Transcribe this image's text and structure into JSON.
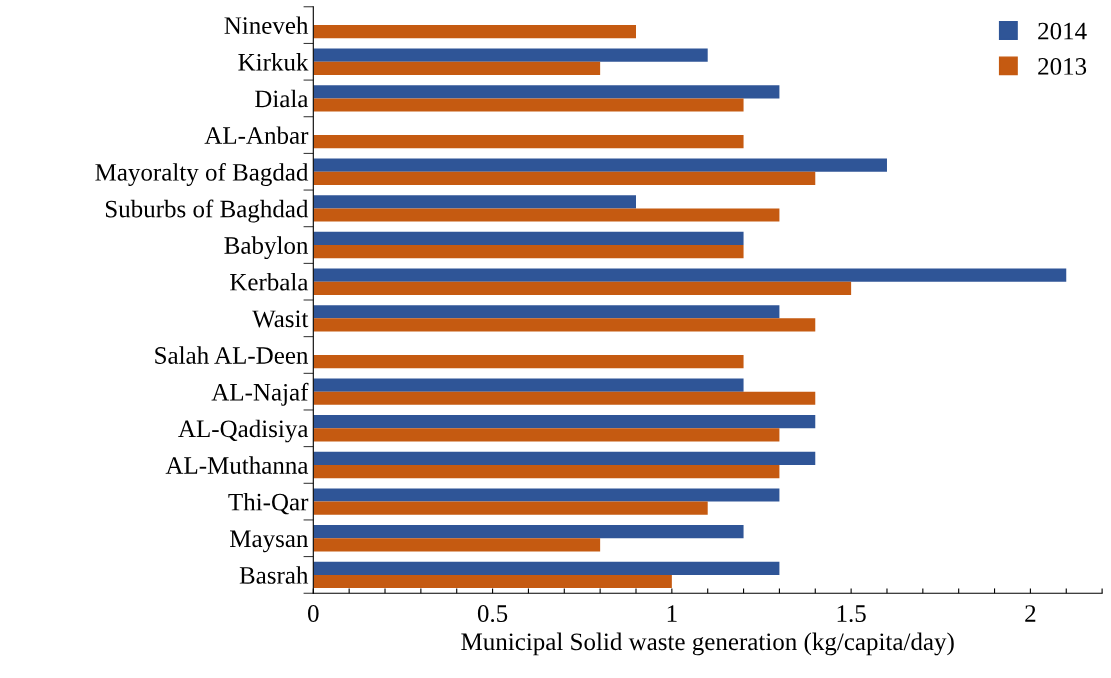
{
  "chart_data": {
    "type": "bar",
    "orientation": "horizontal",
    "xlabel": "Municipal Solid waste generation (kg/capita/day)",
    "categories": [
      "Nineveh",
      "Kirkuk",
      "Diala",
      "AL-Anbar",
      "Mayoralty of Bagdad",
      "Suburbs of Baghdad",
      "Babylon",
      "Kerbala",
      "Wasit",
      "Salah AL-Deen",
      "AL-Najaf",
      "AL-Qadisiya",
      "AL-Muthanna",
      "Thi-Qar",
      "Maysan",
      "Basrah"
    ],
    "series": [
      {
        "name": "2014",
        "color": "#2f5597",
        "values": [
          null,
          1.1,
          1.3,
          null,
          1.6,
          0.9,
          1.2,
          2.1,
          1.3,
          null,
          1.2,
          1.4,
          1.4,
          1.3,
          1.2,
          1.3
        ]
      },
      {
        "name": "2013",
        "color": "#c55a11",
        "values": [
          0.9,
          0.8,
          1.2,
          1.2,
          1.4,
          1.3,
          1.2,
          1.5,
          1.4,
          1.2,
          1.4,
          1.3,
          1.3,
          1.1,
          0.8,
          1.0
        ]
      }
    ],
    "xlim": [
      0,
      2.2
    ],
    "xticks": [
      0,
      {
        "value": 0.1,
        "label": null
      },
      {
        "value": 0.2,
        "label": null
      },
      {
        "value": 0.3,
        "label": null
      },
      {
        "value": 0.4,
        "label": null
      },
      0.5,
      {
        "value": 0.6,
        "label": null
      },
      {
        "value": 0.7,
        "label": null
      },
      {
        "value": 0.8,
        "label": null
      },
      {
        "value": 0.9,
        "label": null
      },
      1,
      {
        "value": 1.1,
        "label": null
      },
      {
        "value": 1.2,
        "label": null
      },
      {
        "value": 1.3,
        "label": null
      },
      {
        "value": 1.4,
        "label": null
      },
      1.5,
      {
        "value": 1.6,
        "label": null
      },
      {
        "value": 1.7,
        "label": null
      },
      {
        "value": 1.8,
        "label": null
      },
      {
        "value": 1.9,
        "label": null
      },
      2,
      {
        "value": 2.1,
        "label": null
      },
      {
        "value": 2.2,
        "label": null
      }
    ],
    "grid": false,
    "legend": "top right"
  }
}
